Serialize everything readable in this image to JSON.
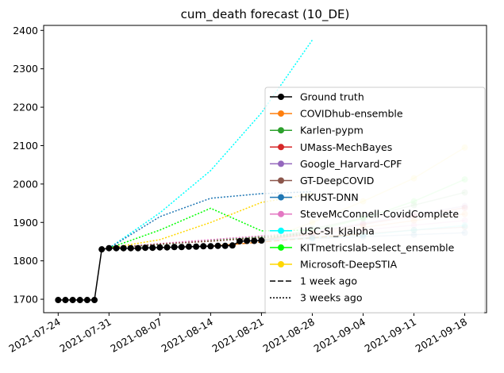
{
  "chart_data": {
    "type": "line",
    "title": "cum_death forecast (10_DE)",
    "xlabel": "",
    "ylabel": "",
    "x_ticks": [
      "2021-07-24",
      "2021-07-31",
      "2021-08-07",
      "2021-08-14",
      "2021-08-21",
      "2021-08-28",
      "2021-09-04",
      "2021-09-11",
      "2021-09-18"
    ],
    "y_ticks": [
      1700,
      1800,
      1900,
      2000,
      2100,
      2200,
      2300,
      2400
    ],
    "xlim": [
      "2021-07-22",
      "2021-09-21"
    ],
    "ylim": [
      1665,
      2413
    ],
    "grid": false,
    "legend_position": "lower right",
    "ground_truth": {
      "name": "Ground truth",
      "color": "#000000",
      "points": [
        [
          "2021-07-24",
          1698
        ],
        [
          "2021-07-25",
          1698
        ],
        [
          "2021-07-26",
          1698
        ],
        [
          "2021-07-27",
          1698
        ],
        [
          "2021-07-28",
          1698
        ],
        [
          "2021-07-29",
          1698
        ],
        [
          "2021-07-30",
          1830
        ],
        [
          "2021-07-31",
          1833
        ],
        [
          "2021-08-01",
          1833
        ],
        [
          "2021-08-02",
          1833
        ],
        [
          "2021-08-03",
          1833
        ],
        [
          "2021-08-04",
          1833
        ],
        [
          "2021-08-05",
          1834
        ],
        [
          "2021-08-06",
          1834
        ],
        [
          "2021-08-07",
          1835
        ],
        [
          "2021-08-08",
          1835
        ],
        [
          "2021-08-09",
          1836
        ],
        [
          "2021-08-10",
          1836
        ],
        [
          "2021-08-11",
          1837
        ],
        [
          "2021-08-12",
          1837
        ],
        [
          "2021-08-13",
          1838
        ],
        [
          "2021-08-14",
          1838
        ],
        [
          "2021-08-15",
          1839
        ],
        [
          "2021-08-16",
          1839
        ],
        [
          "2021-08-17",
          1840
        ],
        [
          "2021-08-18",
          1851
        ],
        [
          "2021-08-19",
          1852
        ],
        [
          "2021-08-20",
          1852
        ],
        [
          "2021-08-21",
          1853
        ]
      ]
    },
    "models": [
      {
        "name": "COVIDhub-ensemble",
        "color": "#ff7f0e",
        "legend": true
      },
      {
        "name": "Karlen-pypm",
        "color": "#2ca02c",
        "legend": true
      },
      {
        "name": "UMass-MechBayes",
        "color": "#d62728",
        "legend": true
      },
      {
        "name": "Google_Harvard-CPF",
        "color": "#9467bd",
        "legend": true
      },
      {
        "name": "GT-DeepCOVID",
        "color": "#8c564b",
        "legend": true
      },
      {
        "name": "HKUST-DNN",
        "color": "#1f77b4",
        "legend": true
      },
      {
        "name": "SteveMcConnell-CovidComplete",
        "color": "#e377c2",
        "legend": true
      },
      {
        "name": "USC-SI_kJalpha",
        "color": "#00ffff",
        "legend": true
      },
      {
        "name": "KITmetricslab-select_ensemble",
        "color": "#00ff00",
        "legend": true
      },
      {
        "name": "Microsoft-DeepSTIA",
        "color": "#ffd700",
        "legend": true
      }
    ],
    "style_legend": [
      {
        "label": "1 week ago",
        "dash": "dashed"
      },
      {
        "label": "3 weeks ago",
        "dash": "dotted"
      }
    ],
    "series": [
      {
        "name": "USC-SI_kJalpha",
        "color": "#00ffff",
        "style": "dotted",
        "markers": false,
        "points": [
          [
            "2021-07-31",
            1833
          ],
          [
            "2021-08-07",
            1925
          ],
          [
            "2021-08-14",
            2035
          ],
          [
            "2021-08-21",
            2185
          ],
          [
            "2021-08-28",
            2375
          ]
        ]
      },
      {
        "name": "HKUST-DNN",
        "color": "#1f77b4",
        "style": "dotted",
        "markers": false,
        "points": [
          [
            "2021-07-31",
            1833
          ],
          [
            "2021-08-07",
            1915
          ],
          [
            "2021-08-14",
            1963
          ],
          [
            "2021-08-21",
            1975
          ],
          [
            "2021-08-28",
            1980
          ]
        ]
      },
      {
        "name": "KITmetricslab-select_ensemble",
        "color": "#00ff00",
        "style": "dotted",
        "markers": false,
        "points": [
          [
            "2021-07-31",
            1833
          ],
          [
            "2021-08-07",
            1880
          ],
          [
            "2021-08-14",
            1937
          ],
          [
            "2021-08-21",
            1878
          ],
          [
            "2021-08-28",
            1880
          ]
        ]
      },
      {
        "name": "Microsoft-DeepSTIA",
        "color": "#ffd700",
        "style": "dotted",
        "markers": false,
        "points": [
          [
            "2021-07-31",
            1833
          ],
          [
            "2021-08-07",
            1855
          ],
          [
            "2021-08-14",
            1900
          ],
          [
            "2021-08-21",
            1952
          ],
          [
            "2021-08-28",
            1975
          ]
        ]
      },
      {
        "name": "Karlen-pypm",
        "color": "#2ca02c",
        "style": "dotted",
        "markers": false,
        "points": [
          [
            "2021-07-31",
            1833
          ],
          [
            "2021-08-07",
            1843
          ],
          [
            "2021-08-14",
            1853
          ],
          [
            "2021-08-21",
            1863
          ],
          [
            "2021-08-28",
            1872
          ]
        ]
      },
      {
        "name": "SteveMcConnell-CovidComplete",
        "color": "#e377c2",
        "style": "dotted",
        "markers": false,
        "points": [
          [
            "2021-07-31",
            1833
          ],
          [
            "2021-08-07",
            1845
          ],
          [
            "2021-08-14",
            1855
          ],
          [
            "2021-08-21",
            1865
          ],
          [
            "2021-08-28",
            1875
          ]
        ]
      },
      {
        "name": "GT-DeepCOVID",
        "color": "#8c564b",
        "style": "dotted",
        "markers": false,
        "points": [
          [
            "2021-07-31",
            1833
          ],
          [
            "2021-08-07",
            1844
          ],
          [
            "2021-08-14",
            1851
          ],
          [
            "2021-08-21",
            1860
          ],
          [
            "2021-08-28",
            1868
          ]
        ]
      },
      {
        "name": "COVIDhub-ensemble",
        "color": "#ff7f0e",
        "style": "dashed",
        "markers": false,
        "points": [
          [
            "2021-08-14",
            1838
          ],
          [
            "2021-08-21",
            1849
          ],
          [
            "2021-08-28",
            1860
          ],
          [
            "2021-09-04",
            1870
          ]
        ]
      },
      {
        "name": "Microsoft-DeepSTIA",
        "color": "#ffd700",
        "style": "solid",
        "markers": true,
        "points": [
          [
            "2021-08-21",
            1853
          ],
          [
            "2021-08-28",
            1900
          ],
          [
            "2021-09-04",
            1955
          ],
          [
            "2021-09-11",
            2015
          ],
          [
            "2021-09-18",
            2095
          ]
        ]
      },
      {
        "name": "KITmetricslab-select_ensemble",
        "color": "#00ff00",
        "style": "solid",
        "markers": true,
        "points": [
          [
            "2021-08-21",
            1853
          ],
          [
            "2021-08-28",
            1878
          ],
          [
            "2021-09-04",
            1910
          ],
          [
            "2021-09-11",
            1955
          ],
          [
            "2021-09-18",
            2012
          ]
        ]
      },
      {
        "name": "Karlen-pypm",
        "color": "#2ca02c",
        "style": "solid",
        "markers": true,
        "points": [
          [
            "2021-08-21",
            1853
          ],
          [
            "2021-08-28",
            1883
          ],
          [
            "2021-09-04",
            1912
          ],
          [
            "2021-09-11",
            1945
          ],
          [
            "2021-09-18",
            1978
          ]
        ]
      },
      {
        "name": "Google_Harvard-CPF",
        "color": "#9467bd",
        "style": "solid",
        "markers": true,
        "points": [
          [
            "2021-08-21",
            1853
          ],
          [
            "2021-08-28",
            1875
          ],
          [
            "2021-09-04",
            1898
          ],
          [
            "2021-09-11",
            1920
          ],
          [
            "2021-09-18",
            1943
          ]
        ]
      },
      {
        "name": "UMass-MechBayes",
        "color": "#d62728",
        "style": "solid",
        "markers": true,
        "points": [
          [
            "2021-08-21",
            1853
          ],
          [
            "2021-08-28",
            1872
          ],
          [
            "2021-09-04",
            1895
          ],
          [
            "2021-09-11",
            1917
          ],
          [
            "2021-09-18",
            1938
          ]
        ]
      },
      {
        "name": "COVIDhub-ensemble",
        "color": "#ff7f0e",
        "style": "solid",
        "markers": true,
        "points": [
          [
            "2021-08-21",
            1853
          ],
          [
            "2021-08-28",
            1870
          ],
          [
            "2021-09-04",
            1887
          ],
          [
            "2021-09-11",
            1905
          ],
          [
            "2021-09-18",
            1922
          ]
        ]
      },
      {
        "name": "SteveMcConnell-CovidComplete",
        "color": "#e377c2",
        "style": "solid",
        "markers": true,
        "points": [
          [
            "2021-08-21",
            1853
          ],
          [
            "2021-08-28",
            1867
          ],
          [
            "2021-09-04",
            1880
          ],
          [
            "2021-09-11",
            1893
          ],
          [
            "2021-09-18",
            1905
          ]
        ]
      },
      {
        "name": "GT-DeepCOVID",
        "color": "#8c564b",
        "style": "solid",
        "markers": true,
        "points": [
          [
            "2021-08-21",
            1853
          ],
          [
            "2021-08-28",
            1862
          ],
          [
            "2021-09-04",
            1870
          ],
          [
            "2021-09-11",
            1880
          ],
          [
            "2021-09-18",
            1888
          ]
        ]
      },
      {
        "name": "USC-SI_kJalpha",
        "color": "#00ffff",
        "style": "solid",
        "markers": true,
        "points": [
          [
            "2021-08-21",
            1853
          ],
          [
            "2021-08-28",
            1860
          ],
          [
            "2021-09-04",
            1867
          ],
          [
            "2021-09-11",
            1880
          ],
          [
            "2021-09-18",
            1892
          ]
        ]
      },
      {
        "name": "HKUST-DNN",
        "color": "#1f77b4",
        "style": "solid",
        "markers": true,
        "points": [
          [
            "2021-08-21",
            1853
          ],
          [
            "2021-08-28",
            1858
          ],
          [
            "2021-09-04",
            1863
          ],
          [
            "2021-09-11",
            1868
          ],
          [
            "2021-09-18",
            1873
          ]
        ]
      }
    ]
  }
}
